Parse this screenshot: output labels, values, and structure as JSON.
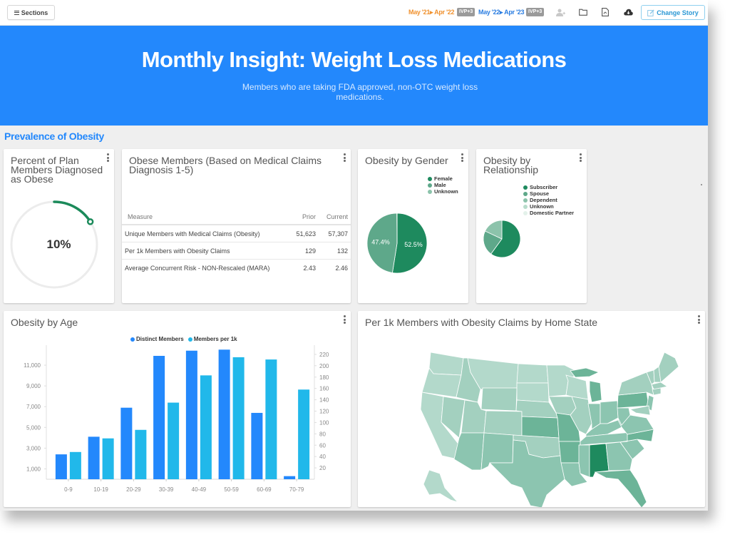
{
  "topbar": {
    "sections_label": "Sections",
    "period_prior": "May '21▸ Apr '22",
    "period_prior_badge": "IVP+3",
    "period_current": "May '22▸ Apr '23",
    "period_current_badge": "IVP+3",
    "icons": [
      "add-user-icon",
      "folder-icon",
      "pdf-icon",
      "cloud-download-icon"
    ],
    "change_story_label": "Change Story"
  },
  "hero": {
    "title": "Monthly Insight: Weight Loss Medications",
    "subtitle": "Members who are taking FDA approved, non-OTC weight loss medications."
  },
  "section": {
    "title": "Prevalence of Obesity"
  },
  "colors": {
    "brand_blue": "#2388fc",
    "prior_orange": "#f0912e",
    "current_blue": "#2a7de1",
    "gauge_green": "#1b8a5a",
    "series_distinct": "#2388fc",
    "series_per1k": "#21b8ea"
  },
  "gauge_card": {
    "title": "Percent of Plan Members Diagnosed as Obese",
    "value_label": "10%",
    "value": 0.1
  },
  "table_card": {
    "title": "Obese Members (Based on Medical Claims Diagnosis 1-5)",
    "columns": [
      "Measure",
      "Prior",
      "Current"
    ],
    "rows": [
      {
        "measure": "Unique Members with Medical Claims (Obesity)",
        "prior": "51,623",
        "current": "57,307"
      },
      {
        "measure": "Per 1k Members with Obesity Claims",
        "prior": "129",
        "current": "132"
      },
      {
        "measure": "Average Concurrent Risk - NON-Rescaled (MARA)",
        "prior": "2.43",
        "current": "2.46"
      }
    ]
  },
  "chart_data": [
    {
      "id": "gender",
      "type": "pie",
      "title": "Obesity by Gender",
      "legend_position": "top-right",
      "slices": [
        {
          "label": "Female",
          "value": 52.5,
          "data_label": "52.5%",
          "color": "#1e8a5e"
        },
        {
          "label": "Male",
          "value": 47.4,
          "data_label": "47.4%",
          "color": "#5ea88a"
        },
        {
          "label": "Unknown",
          "value": 0.1,
          "data_label": "",
          "color": "#8cc3ab"
        }
      ]
    },
    {
      "id": "relationship",
      "type": "pie",
      "title": "Obesity by Relationship",
      "legend_position": "top-right",
      "slices": [
        {
          "label": "Subscriber",
          "value": 60,
          "color": "#1e8a5e"
        },
        {
          "label": "Spouse",
          "value": 22,
          "color": "#5ea88a"
        },
        {
          "label": "Dependent",
          "value": 18,
          "color": "#8cc3ab"
        },
        {
          "label": "Unknown",
          "value": 0,
          "color": "#b8dccb"
        },
        {
          "label": "Domestic Partner",
          "value": 0,
          "color": "#e3f1ea"
        }
      ]
    },
    {
      "id": "age",
      "type": "bar",
      "title": "Obesity by Age",
      "legend_position": "top",
      "categories": [
        "0-9",
        "10-19",
        "20-29",
        "30-39",
        "40-49",
        "50-59",
        "60-69",
        "70-79"
      ],
      "series": [
        {
          "name": "Distinct Members",
          "axis": "left",
          "color": "#2388fc",
          "values": [
            2400,
            4100,
            6900,
            11900,
            12400,
            12500,
            6400,
            300
          ]
        },
        {
          "name": "Members per 1k",
          "axis": "right",
          "color": "#21b8ea",
          "values": [
            48,
            72,
            87,
            135,
            183,
            215,
            211,
            158
          ]
        }
      ],
      "y_left": {
        "ticks": [
          1000,
          3000,
          5000,
          7000,
          9000,
          11000
        ],
        "tick_labels": [
          "1,000",
          "3,000",
          "5,000",
          "7,000",
          "9,000",
          "11,000"
        ],
        "range": [
          0,
          13000
        ]
      },
      "y_right": {
        "ticks": [
          20,
          40,
          60,
          80,
          100,
          120,
          140,
          160,
          180,
          200,
          220
        ],
        "range": [
          0,
          240
        ]
      },
      "grid": false
    },
    {
      "id": "state_map",
      "type": "heatmap",
      "title": "Per 1k Members with Obesity Claims by Home State",
      "note": "US choropleth; darkest state Alabama; darker: MI, PA, MO, AR, KS, KY, NC, FL, GA, SC; lightest: WA, OR, CA, MT, ND, SD, MN, WI, AK",
      "shade_levels": {
        "AL": 5,
        "MI": 3,
        "PA": 3,
        "MO": 3,
        "AR": 3,
        "KS": 3,
        "FL": 3,
        "NC": 3,
        "GA": 2,
        "SC": 2,
        "KY": 2,
        "WV": 2,
        "OH": 2,
        "TN": 2,
        "LA": 2,
        "MS": 2,
        "IN": 2,
        "NJ": 2,
        "VA": 2,
        "AZ": 2,
        "TX": 2,
        "NM": 2,
        "OK": 1,
        "CO": 1,
        "UT": 1,
        "NV": 1,
        "ID": 1,
        "WY": 1,
        "NE": 1,
        "IA": 1,
        "IL": 1,
        "NY": 1,
        "ME": 1,
        "VT": 1,
        "NH": 1,
        "MA": 1,
        "CT": 1,
        "MD": 1,
        "WA": 0,
        "OR": 0,
        "CA": 0,
        "MT": 0,
        "ND": 0,
        "SD": 0,
        "MN": 0,
        "WI": 0,
        "AK": 0,
        "HI": 0
      }
    }
  ]
}
